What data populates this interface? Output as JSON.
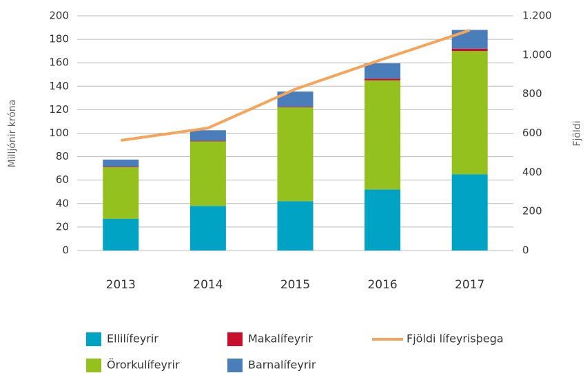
{
  "chart_data": {
    "type": "bar",
    "categories": [
      "2013",
      "2014",
      "2015",
      "2016",
      "2017"
    ],
    "stacked": true,
    "series": [
      {
        "name": "Ellilífeyrir",
        "color": "#00a3c4",
        "values": [
          27,
          38,
          42,
          52,
          65
        ]
      },
      {
        "name": "Örorkulífeyrir",
        "color": "#95c11f",
        "values": [
          44,
          55,
          80,
          93,
          105
        ]
      },
      {
        "name": "Makalífeyrir",
        "color": "#c8102e",
        "values": [
          0.5,
          0.5,
          0.5,
          1.5,
          2
        ]
      },
      {
        "name": "Barnalífeyrir",
        "color": "#4a7ebb",
        "values": [
          6,
          9,
          13,
          13,
          16
        ]
      },
      {
        "name": "Fjöldi lífeyrisþega",
        "color": "#f5a55a",
        "type": "line",
        "axis": "y2",
        "values": [
          563,
          626,
          825,
          978,
          1126
        ]
      }
    ],
    "ylabel": "Milljónir króna",
    "y2label": "Fjöldi",
    "ylim": [
      0,
      200
    ],
    "yticks": [
      0,
      20,
      40,
      60,
      80,
      100,
      120,
      140,
      160,
      180,
      200
    ],
    "y2lim": [
      0,
      1200
    ],
    "y2ticks": [
      0,
      200,
      400,
      600,
      800,
      {
        "value": 1000,
        "label": "1.000"
      },
      {
        "value": 1200,
        "label": "1.200"
      }
    ],
    "grid": true,
    "legend": "bottom"
  }
}
